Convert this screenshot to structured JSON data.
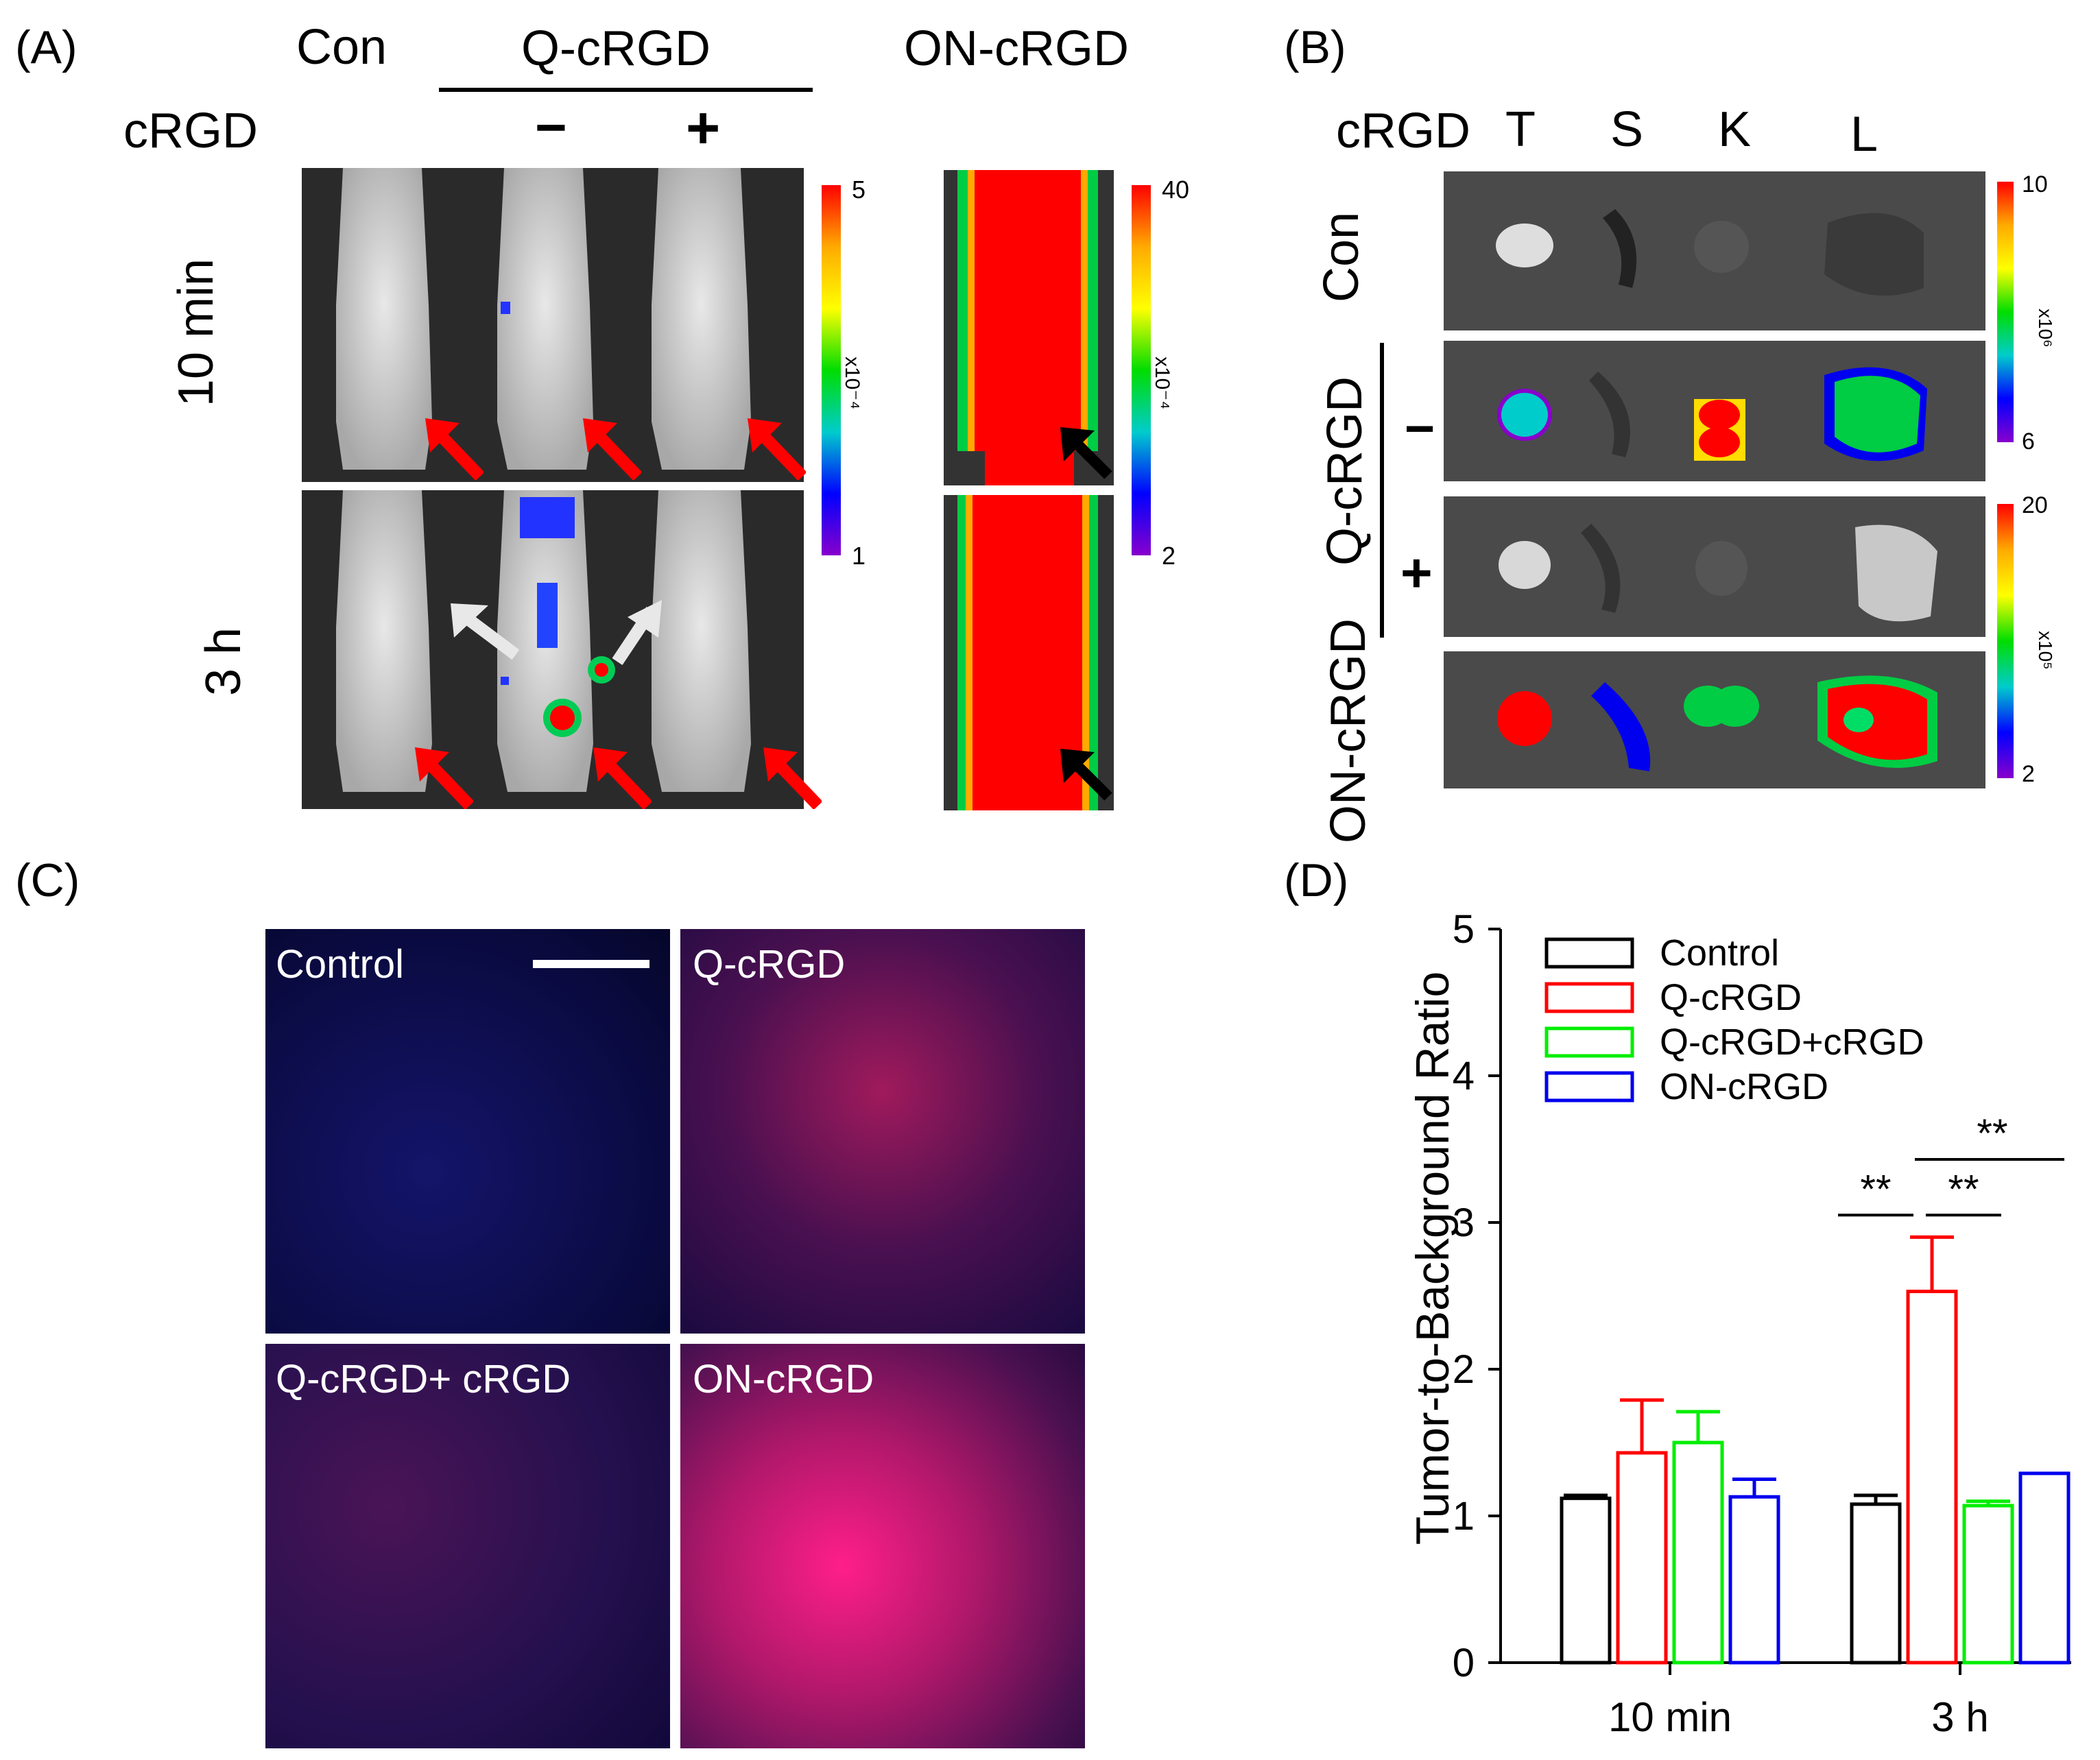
{
  "panels": {
    "A": {
      "letter": "(A)",
      "con": "Con",
      "q_crgd": "Q-cRGD",
      "on_crgd": "ON-cRGD",
      "crgd": "cRGD",
      "minus": "−",
      "plus": "+",
      "row1": "10 min",
      "row2": "3 h",
      "scale1": {
        "max": "5",
        "min": "1",
        "unit": "x10⁻⁴"
      },
      "scale2": {
        "max": "40",
        "min": "2",
        "unit": "x10⁻⁴"
      }
    },
    "B": {
      "letter": "(B)",
      "crgd": "cRGD",
      "organs": [
        "T",
        "S",
        "K",
        "L"
      ],
      "rows": [
        "Con",
        "Q-cRGD",
        "ON-cRGD"
      ],
      "minus": "−",
      "plus": "+",
      "scale1": {
        "max": "10",
        "min": "6",
        "unit": "x10⁶"
      },
      "scale2": {
        "max": "20",
        "min": "2",
        "unit": "x10⁵"
      }
    },
    "C": {
      "letter": "(C)",
      "images": [
        "Control",
        "Q-cRGD",
        "Q-cRGD+ cRGD",
        "ON-cRGD"
      ]
    },
    "D": {
      "letter": "(D)",
      "sig": "**"
    }
  },
  "chart_data": {
    "type": "bar",
    "title": "",
    "xlabel": "",
    "ylabel": "Tumor-to-Background Ratio",
    "ylim": [
      0,
      5
    ],
    "yticks": [
      "0",
      "1",
      "2",
      "3",
      "4",
      "5"
    ],
    "categories": [
      "10 min",
      "3 h"
    ],
    "series": [
      {
        "name": "Control",
        "color": "#000000",
        "values": [
          1.12,
          1.08
        ],
        "errors": [
          0.02,
          0.06
        ]
      },
      {
        "name": "Q-cRGD",
        "color": "#ff0000",
        "values": [
          1.43,
          2.53
        ],
        "errors": [
          0.36,
          0.37
        ]
      },
      {
        "name": "Q-cRGD+cRGD",
        "color": "#00ee00",
        "values": [
          1.5,
          1.07
        ],
        "errors": [
          0.21,
          0.03
        ]
      },
      {
        "name": "ON-cRGD",
        "color": "#0000ee",
        "values": [
          1.13,
          1.29
        ],
        "errors": [
          0.12,
          0.0
        ]
      }
    ],
    "significance": [
      "**",
      "**",
      "**"
    ],
    "legend": "top-left"
  }
}
